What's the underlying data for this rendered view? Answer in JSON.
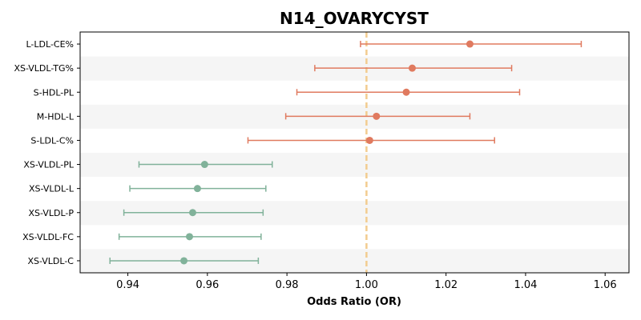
{
  "chart_data": {
    "type": "forest",
    "title": "N14_OVARYCYST",
    "xlabel": "Odds Ratio (OR)",
    "xlim": [
      0.928,
      1.066
    ],
    "xticks": [
      0.94,
      0.96,
      0.98,
      1.0,
      1.02,
      1.04,
      1.06
    ],
    "xtick_labels": [
      "0.94",
      "0.96",
      "0.98",
      "1.00",
      "1.02",
      "1.04",
      "1.06"
    ],
    "reference_line": 1.0,
    "colors": {
      "positive": "#e07a5f",
      "negative": "#81b29a",
      "reference": "#f2cc8f",
      "band": "#f5f5f5"
    },
    "rows": [
      {
        "label": "L-LDL-CE%",
        "or": 1.026,
        "lower": 0.9985,
        "upper": 1.054,
        "direction": "positive"
      },
      {
        "label": "XS-VLDL-TG%",
        "or": 1.0115,
        "lower": 0.987,
        "upper": 1.0365,
        "direction": "positive"
      },
      {
        "label": "S-HDL-PL",
        "or": 1.01,
        "lower": 0.9825,
        "upper": 1.0385,
        "direction": "positive"
      },
      {
        "label": "M-HDL-L",
        "or": 1.0025,
        "lower": 0.9797,
        "upper": 1.026,
        "direction": "positive"
      },
      {
        "label": "S-LDL-C%",
        "or": 1.0008,
        "lower": 0.9702,
        "upper": 1.0322,
        "direction": "positive"
      },
      {
        "label": "XS-VLDL-PL",
        "or": 0.9593,
        "lower": 0.9428,
        "upper": 0.9763,
        "direction": "negative"
      },
      {
        "label": "XS-VLDL-L",
        "or": 0.9575,
        "lower": 0.9405,
        "upper": 0.9747,
        "direction": "negative"
      },
      {
        "label": "XS-VLDL-P",
        "or": 0.9563,
        "lower": 0.939,
        "upper": 0.974,
        "direction": "negative"
      },
      {
        "label": "XS-VLDL-FC",
        "or": 0.9555,
        "lower": 0.9378,
        "upper": 0.9735,
        "direction": "negative"
      },
      {
        "label": "XS-VLDL-C",
        "or": 0.9541,
        "lower": 0.9355,
        "upper": 0.9728,
        "direction": "negative"
      }
    ]
  }
}
